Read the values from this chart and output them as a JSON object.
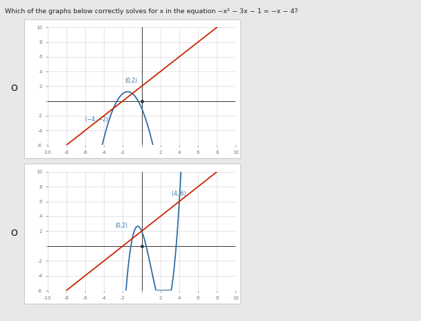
{
  "title": "Which of the graphs below correctly solves for x in the equation −x² − 3x − 1 = −x − 4?",
  "outer_bg": "#e8e8e8",
  "panel_bg": "#ffffff",
  "panel_border": "#cccccc",
  "grid_color": "#d0d0d0",
  "axis_color": "#333333",
  "tick_color": "#777777",
  "graph1": {
    "xlim": [
      -10,
      10
    ],
    "ylim": [
      -6,
      10
    ],
    "xticks": [
      -10,
      -8,
      -6,
      -4,
      -2,
      0,
      2,
      4,
      6,
      8,
      10
    ],
    "yticks": [
      -6,
      -4,
      -2,
      0,
      2,
      4,
      6,
      8,
      10
    ],
    "parabola_color": "#2e6da4",
    "line_color": "#cc2200",
    "ann1_text": "(0,2)",
    "ann1_x": -1.8,
    "ann1_y": 2.5,
    "ann2_text": "(−4, −2)",
    "ann2_x": -6.0,
    "ann2_y": -2.8,
    "para_xmin": -4.8,
    "para_xmax": 1.2,
    "line_slope": 1,
    "line_intercept": 2
  },
  "graph2": {
    "xlim": [
      -10,
      10
    ],
    "ylim": [
      -6,
      10
    ],
    "xticks": [
      -10,
      -8,
      -6,
      -4,
      -2,
      0,
      2,
      4,
      6,
      8,
      10
    ],
    "yticks": [
      -6,
      -4,
      -2,
      0,
      2,
      4,
      6,
      8,
      10
    ],
    "parabola_color": "#2e6da4",
    "line_color": "#cc2200",
    "ann1_text": "(0,2)",
    "ann1_x": -2.8,
    "ann1_y": 2.5,
    "ann2_text": "(4, 6)",
    "ann2_x": 3.2,
    "ann2_y": 6.8,
    "line_slope": 1,
    "line_intercept": 2
  }
}
